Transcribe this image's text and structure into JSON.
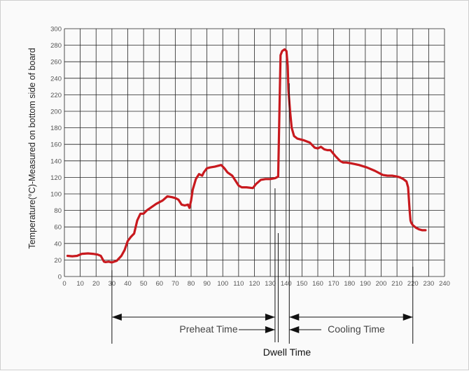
{
  "chart_data": {
    "type": "line",
    "title": "",
    "xlabel": "",
    "ylabel": "Temperature(°C)-Measured on bottom side of board",
    "xlim": [
      0,
      240
    ],
    "ylim": [
      0,
      300
    ],
    "x_ticks": [
      0,
      10,
      20,
      30,
      40,
      50,
      60,
      70,
      80,
      90,
      100,
      110,
      120,
      130,
      140,
      150,
      160,
      170,
      180,
      190,
      200,
      210,
      220,
      230,
      240
    ],
    "y_ticks": [
      0,
      20,
      40,
      60,
      80,
      100,
      120,
      140,
      160,
      180,
      200,
      220,
      240,
      260,
      280,
      300
    ],
    "grid": true,
    "series_color": "#c8191e",
    "x": [
      2,
      5,
      8,
      11,
      15,
      18,
      21,
      23,
      25,
      26,
      28,
      30,
      33,
      36,
      38,
      40,
      42,
      44,
      46,
      48,
      50,
      52,
      55,
      58,
      62,
      65,
      68,
      70,
      72,
      74,
      76,
      78,
      79,
      80,
      81,
      83,
      85,
      87,
      88,
      90,
      92,
      95,
      99,
      101,
      103,
      106,
      108,
      110,
      112,
      115,
      119,
      121,
      124,
      127,
      130,
      133,
      135,
      135.8,
      136.5,
      137.5,
      139,
      140.2,
      141,
      141.5,
      142.5,
      143.5,
      145,
      147,
      151,
      155,
      158,
      160,
      162,
      164,
      166,
      168,
      171,
      174,
      176,
      178,
      181,
      186,
      191,
      196,
      201,
      204,
      207,
      210,
      212,
      214,
      216,
      217,
      218,
      218.5,
      219,
      220,
      222,
      224,
      226,
      228
    ],
    "y": [
      25,
      24.5,
      25,
      27.5,
      28,
      27.5,
      26.5,
      25,
      18,
      17.5,
      18,
      17,
      19,
      25,
      32,
      43,
      48,
      52,
      68,
      76,
      76,
      80,
      84,
      88,
      92,
      97,
      96,
      95,
      93,
      87,
      86,
      87,
      83,
      92,
      105,
      118,
      124,
      122,
      126,
      131,
      132,
      133,
      135,
      131,
      126,
      122,
      116,
      110,
      108,
      108,
      107,
      112,
      117,
      118,
      118,
      119,
      121,
      200,
      268,
      273,
      275,
      273,
      255,
      225,
      200,
      180,
      170,
      167,
      165,
      162,
      156,
      155,
      157,
      154,
      153,
      153,
      146,
      140,
      138,
      138,
      137,
      135,
      132,
      128,
      123,
      122,
      122,
      121,
      120,
      118,
      115,
      108,
      80,
      68,
      65,
      62,
      59,
      57,
      56,
      56
    ]
  },
  "phases": {
    "preheat": {
      "label": "Preheat Time",
      "x_start": 30,
      "x_end": 135
    },
    "dwell": {
      "label": "Dwell Time",
      "x_start": 133,
      "x_end": 142
    },
    "cooling": {
      "label": "Cooling Time",
      "x_start": 142,
      "x_end": 220
    }
  }
}
